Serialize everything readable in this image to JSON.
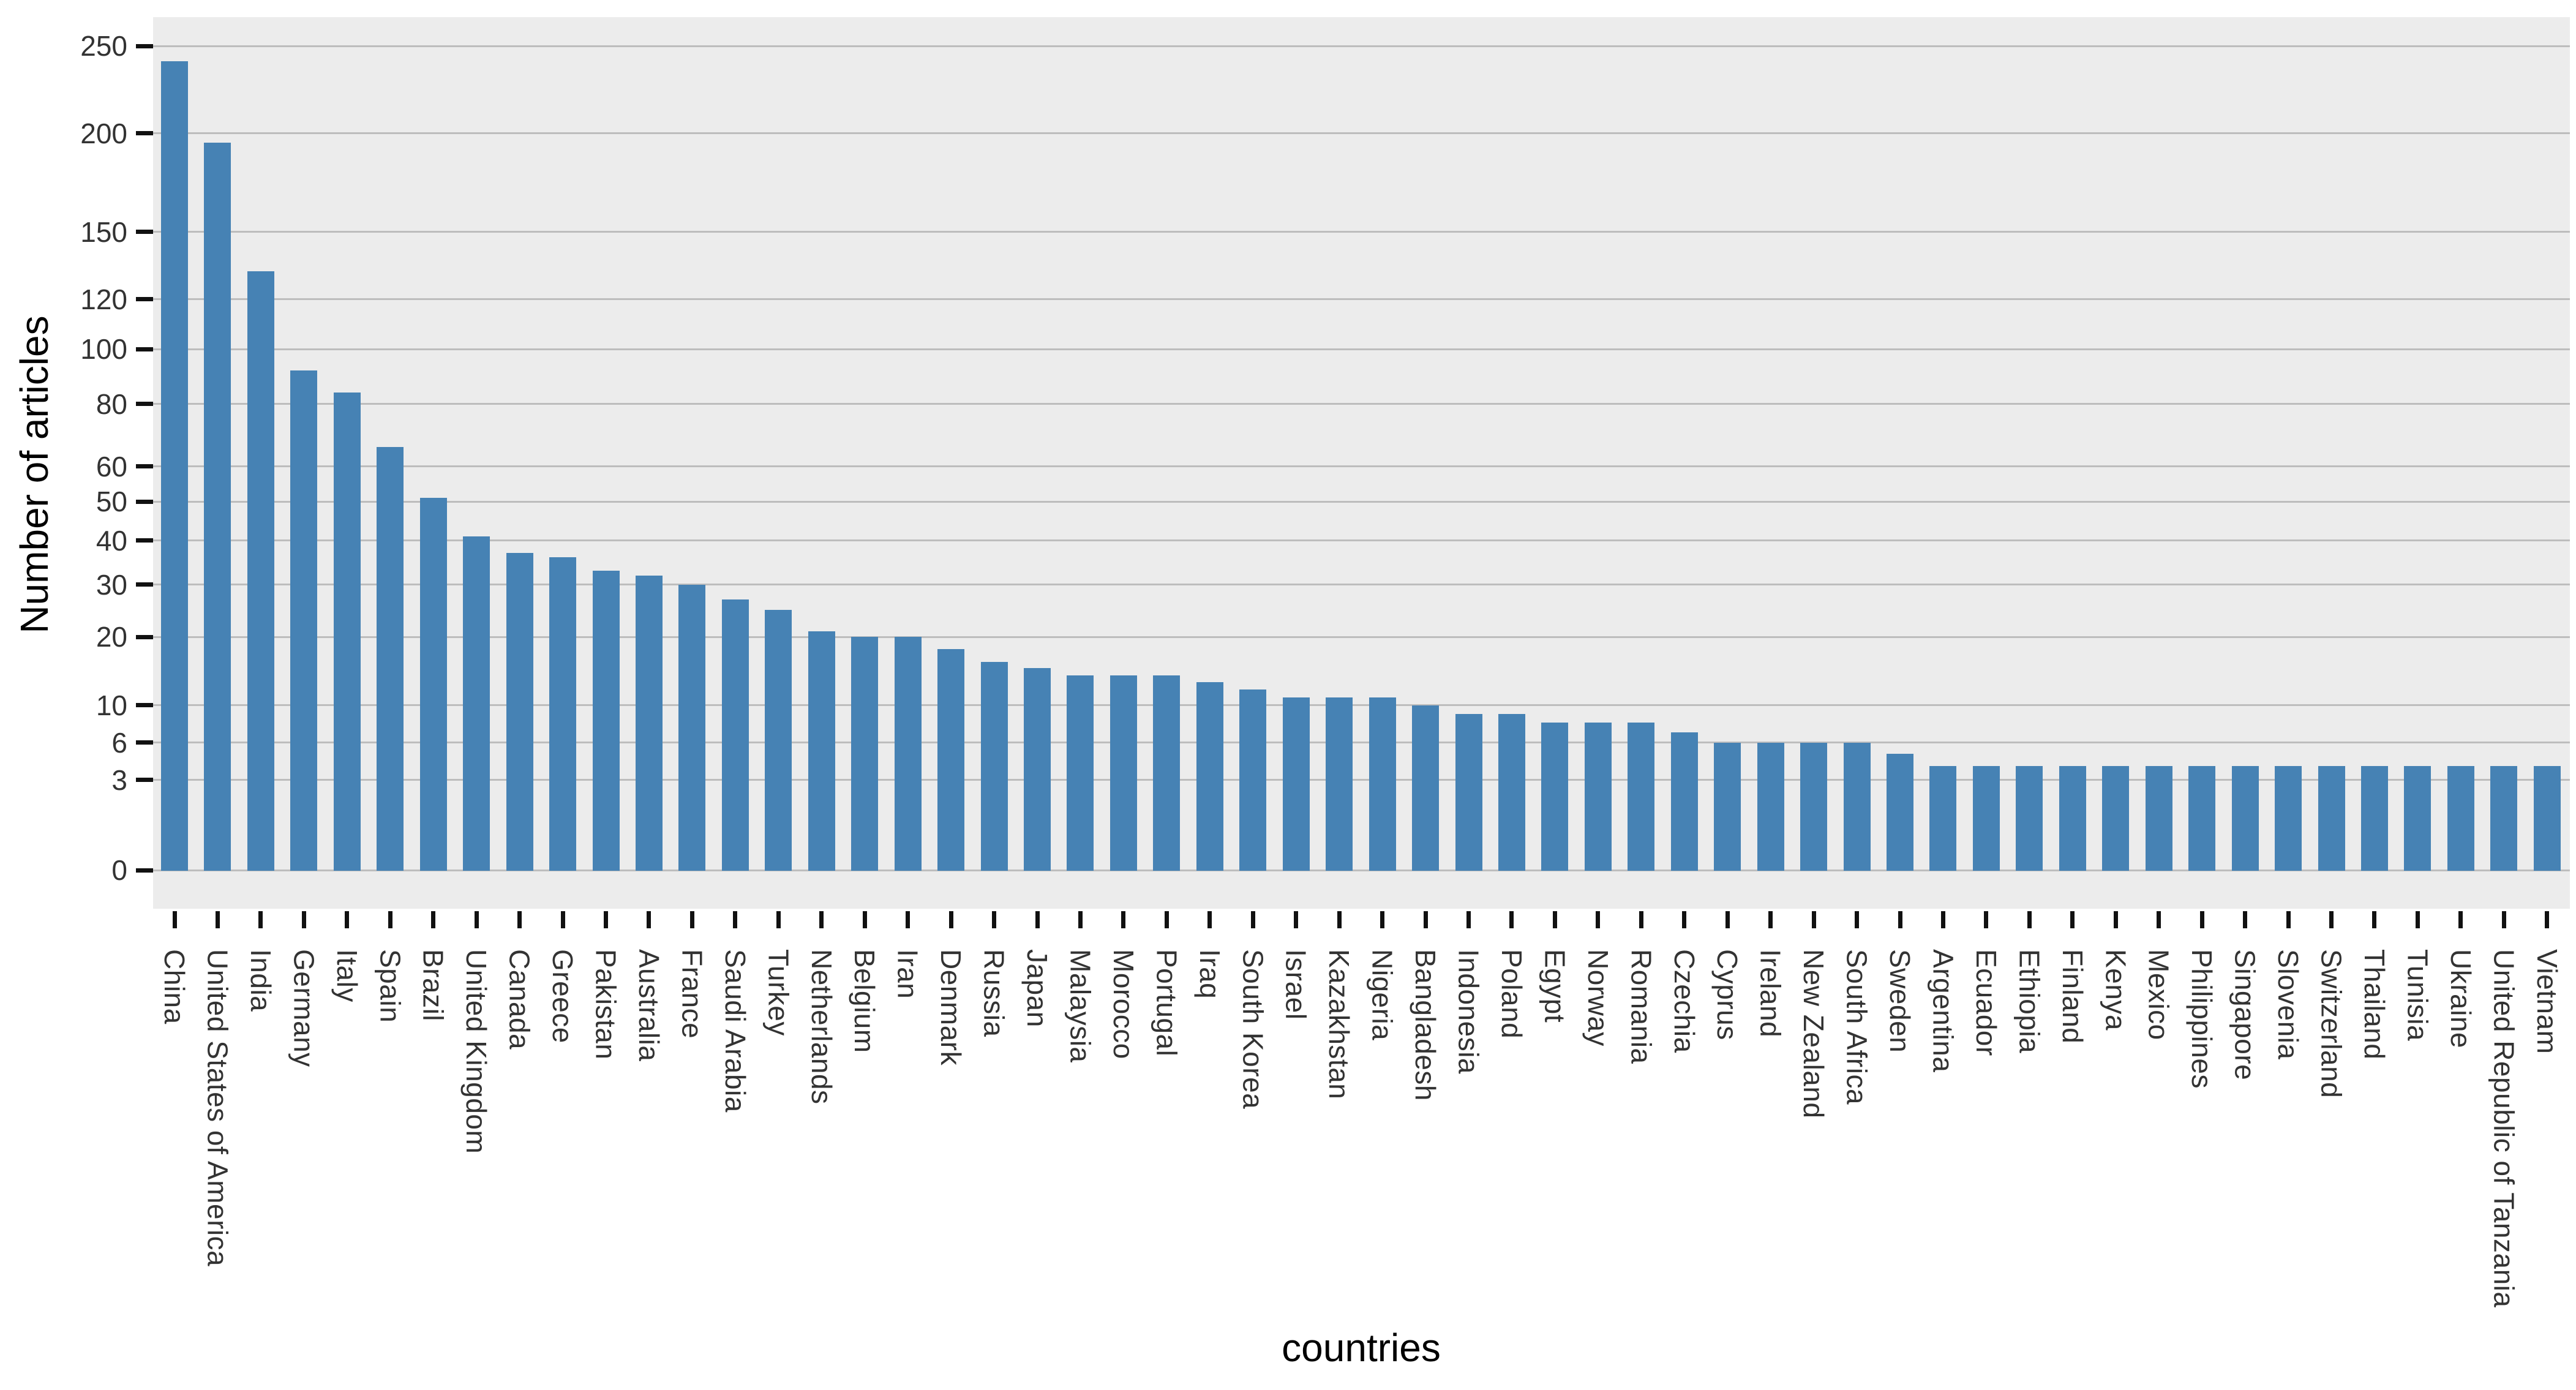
{
  "chart_data": {
    "type": "bar",
    "title": "",
    "xlabel": "countries",
    "ylabel": "Number of articles",
    "y_scale": "sqrt",
    "ylim": [
      0,
      250
    ],
    "grid": true,
    "legend": false,
    "yticks": [
      0,
      3,
      6,
      10,
      20,
      30,
      40,
      50,
      60,
      80,
      100,
      120,
      150,
      200,
      250
    ],
    "categories": [
      "China",
      "United States of America",
      "India",
      "Germany",
      "Italy",
      "Spain",
      "Brazil",
      "United Kingdom",
      "Canada",
      "Greece",
      "Pakistan",
      "Australia",
      "France",
      "Saudi Arabia",
      "Turkey",
      "Netherlands",
      "Belgium",
      "Iran",
      "Denmark",
      "Russia",
      "Japan",
      "Malaysia",
      "Morocco",
      "Portugal",
      "Iraq",
      "South Korea",
      "Israel",
      "Kazakhstan",
      "Nigeria",
      "Bangladesh",
      "Indonesia",
      "Poland",
      "Egypt",
      "Norway",
      "Romania",
      "Czechia",
      "Cyprus",
      "Ireland",
      "New Zealand",
      "South Africa",
      "Sweden",
      "Argentina",
      "Ecuador",
      "Ethiopia",
      "Finland",
      "Kenya",
      "Mexico",
      "Philippines",
      "Singapore",
      "Slovenia",
      "Switzerland",
      "Thailand",
      "Tunisia",
      "Ukraine",
      "United Republic of Tanzania",
      "Vietnam"
    ],
    "values": [
      241,
      195,
      132,
      92,
      84,
      66,
      51,
      41,
      37,
      36,
      33,
      32,
      30,
      27,
      25,
      21,
      20,
      20,
      18,
      16,
      15,
      14,
      14,
      14,
      13,
      12,
      11,
      11,
      11,
      10,
      9,
      9,
      8,
      8,
      8,
      7,
      6,
      6,
      6,
      6,
      5,
      4,
      4,
      4,
      4,
      4,
      4,
      4,
      4,
      4,
      4,
      4,
      4,
      4,
      4,
      4
    ],
    "bar_color": "#4682b4",
    "plot_bg_color": "#ececec",
    "grid_color": "#bdbdbd",
    "tick_mark_color": "#111111",
    "tick_label_color": "#333333",
    "axis_title_color": "#000000"
  }
}
